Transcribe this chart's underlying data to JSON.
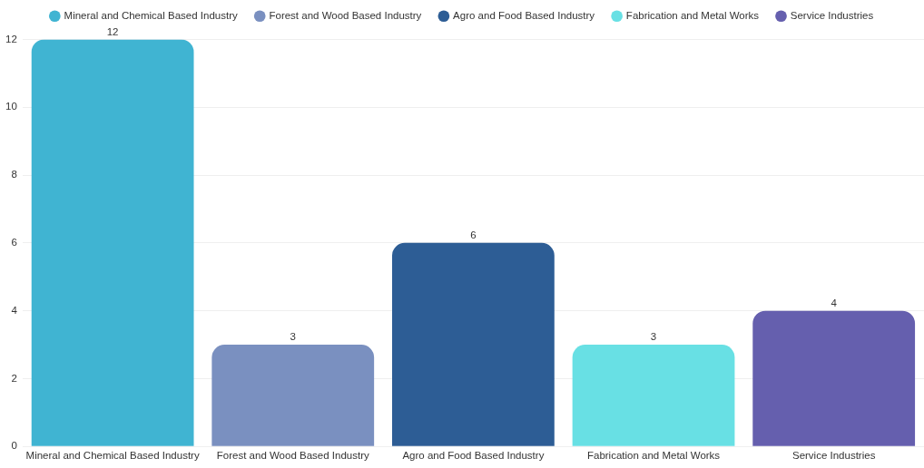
{
  "chart_data": {
    "type": "bar",
    "categories": [
      "Mineral and Chemical Based Industry",
      "Forest and Wood Based Industry",
      "Agro and Food Based Industry",
      "Fabrication and Metal Works",
      "Service Industries"
    ],
    "series": [
      {
        "name": "Mineral and Chemical Based Industry",
        "color": "#40b4d2",
        "values": [
          12,
          null,
          null,
          null,
          null
        ]
      },
      {
        "name": "Forest and Wood Based Industry",
        "color": "#7a90c0",
        "values": [
          null,
          3,
          null,
          null,
          null
        ]
      },
      {
        "name": "Agro and Food Based Industry",
        "color": "#2d5d95",
        "values": [
          null,
          null,
          6,
          null,
          null
        ]
      },
      {
        "name": "Fabrication and Metal Works",
        "color": "#68e0e4",
        "values": [
          null,
          null,
          null,
          3,
          null
        ]
      },
      {
        "name": "Service Industries",
        "color": "#655fae",
        "values": [
          null,
          null,
          null,
          null,
          4
        ]
      }
    ],
    "stacked": true,
    "ylim": [
      0,
      12
    ],
    "yticks": [
      0,
      2,
      4,
      6,
      8,
      10,
      12
    ],
    "grid": "y",
    "legend": "top",
    "data_labels": true
  }
}
